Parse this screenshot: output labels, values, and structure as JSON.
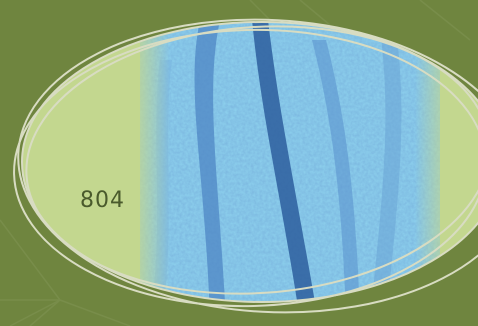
{
  "badge": {
    "number": "804"
  },
  "colors": {
    "background": "#6f853f",
    "ellipse_fill": "#c3d78f",
    "image_blue": "#8ed2ee",
    "image_dark_blue": "#2d5e9e",
    "ring": "#d8dcc2",
    "text": "#4a5a2c"
  }
}
